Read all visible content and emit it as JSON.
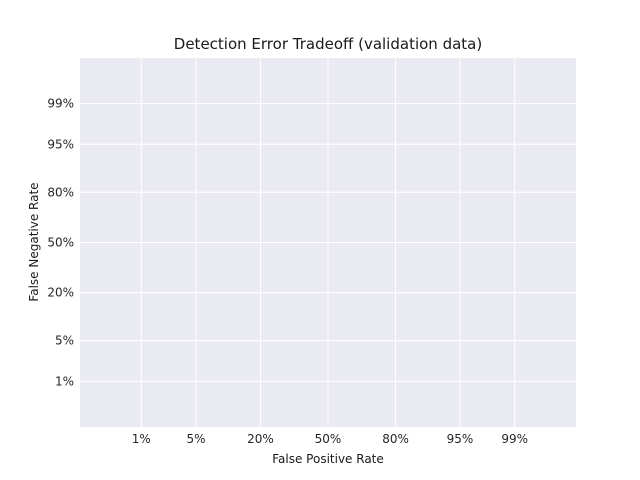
{
  "chart_data": {
    "type": "line",
    "title": "Detection Error Tradeoff (validation data)",
    "xlabel": "False Positive Rate",
    "ylabel": "False Negative Rate",
    "x_scale": "normal-deviate (probit)",
    "y_scale": "normal-deviate (probit)",
    "x_ticks": [
      0.01,
      0.05,
      0.2,
      0.5,
      0.8,
      0.95,
      0.99
    ],
    "y_ticks": [
      0.01,
      0.05,
      0.2,
      0.5,
      0.8,
      0.95,
      0.99
    ],
    "x_tick_labels": [
      "1%",
      "5%",
      "20%",
      "50%",
      "80%",
      "95%",
      "99%"
    ],
    "y_tick_labels": [
      "1%",
      "5%",
      "20%",
      "50%",
      "80%",
      "95%",
      "99%"
    ],
    "xlim": [
      0.001,
      0.999
    ],
    "ylim": [
      0.001,
      0.999
    ],
    "grid": true,
    "series": [],
    "colors": {
      "plot_background": "#eaeaf2",
      "grid": "#ffffff"
    }
  }
}
